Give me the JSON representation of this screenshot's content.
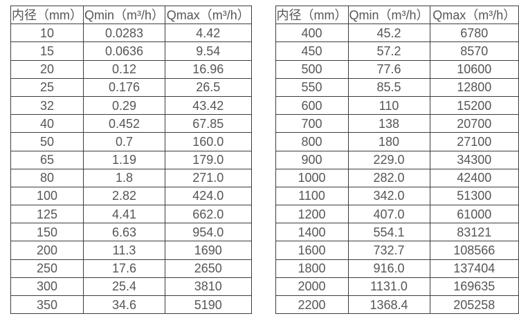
{
  "colors": {
    "border-color": "#3c3c3c",
    "text-color": "#565656",
    "bg-color": "#ffffff"
  },
  "table_left": {
    "headers": [
      "内径（mm）",
      "Qmin（m³/h）",
      "Qmax（m³/h）"
    ],
    "rows": [
      [
        "10",
        "0.0283",
        "4.42"
      ],
      [
        "15",
        "0.0636",
        "9.54"
      ],
      [
        "20",
        "0.12",
        "16.96"
      ],
      [
        "25",
        "0.176",
        "26.5"
      ],
      [
        "32",
        "0.29",
        "43.42"
      ],
      [
        "40",
        "0.452",
        "67.85"
      ],
      [
        "50",
        "0.7",
        "160.0"
      ],
      [
        "65",
        "1.19",
        "179.0"
      ],
      [
        "80",
        "1.8",
        "271.0"
      ],
      [
        "100",
        "2.82",
        "424.0"
      ],
      [
        "125",
        "4.41",
        "662.0"
      ],
      [
        "150",
        "6.63",
        "954.0"
      ],
      [
        "200",
        "11.3",
        "1690"
      ],
      [
        "250",
        "17.6",
        "2650"
      ],
      [
        "300",
        "25.4",
        "3810"
      ],
      [
        "350",
        "34.6",
        "5190"
      ]
    ]
  },
  "table_right": {
    "headers": [
      "内径（mm）",
      "Qmin（m³/h）",
      "Qmax（m³/h）"
    ],
    "rows": [
      [
        "400",
        "45.2",
        "6780"
      ],
      [
        "450",
        "57.2",
        "8570"
      ],
      [
        "500",
        "77.6",
        "10600"
      ],
      [
        "550",
        "85.5",
        "12800"
      ],
      [
        "600",
        "110",
        "15200"
      ],
      [
        "700",
        "138",
        "20700"
      ],
      [
        "800",
        "180",
        "27100"
      ],
      [
        "900",
        "229.0",
        "34300"
      ],
      [
        "1000",
        "282.0",
        "42400"
      ],
      [
        "1100",
        "342.0",
        "51300"
      ],
      [
        "1200",
        "407.0",
        "61000"
      ],
      [
        "1400",
        "554.1",
        "83121"
      ],
      [
        "1600",
        "732.7",
        "108566"
      ],
      [
        "1800",
        "916.0",
        "137404"
      ],
      [
        "2000",
        "1131.0",
        "169635"
      ],
      [
        "2200",
        "1368.4",
        "205258"
      ]
    ]
  }
}
